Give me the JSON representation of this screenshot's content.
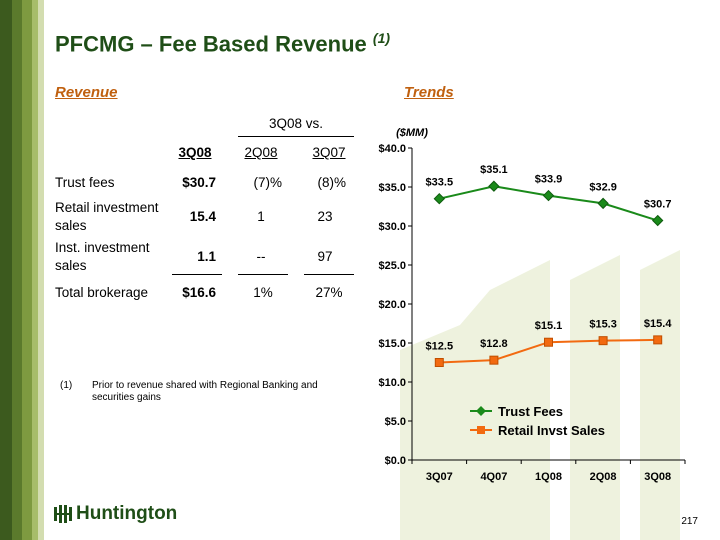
{
  "title": "PFCMG – Fee Based Revenue",
  "title_note": "(1)",
  "revenue_heading": "Revenue",
  "trends_heading": "Trends",
  "table": {
    "group_header": "3Q08 vs.",
    "col_headers": [
      "3Q08",
      "2Q08",
      "3Q07"
    ],
    "rows": [
      {
        "label_1": "Trust fees",
        "label_2": "",
        "v": "$30.7",
        "c1": "(7)%",
        "c2": "(8)%"
      },
      {
        "label_1": "Retail investment",
        "label_2": "sales",
        "v": "15.4",
        "c1": "1",
        "c2": "23"
      },
      {
        "label_1": "Inst. investment",
        "label_2": "sales",
        "v": "1.1",
        "c1": "--",
        "c2": "97"
      },
      {
        "label_1": "Total brokerage",
        "label_2": "",
        "v": "$16.6",
        "c1": "1%",
        "c2": "27%"
      }
    ]
  },
  "footnote": {
    "marker": "(1)",
    "line1": "Prior to revenue shared with Regional Banking and",
    "line2": "securities gains"
  },
  "logo_text": "Huntington",
  "page_number": "217",
  "colors": {
    "title": "#1f4e17",
    "heading": "#c0600f",
    "trust": "#1a8a1a",
    "retail": "#f26a10"
  },
  "chart_data": {
    "type": "line",
    "unit_label": "($MM)",
    "categories": [
      "3Q07",
      "4Q07",
      "1Q08",
      "2Q08",
      "3Q08"
    ],
    "ylim": [
      0,
      40
    ],
    "yticks": [
      "$0.0",
      "$5.0",
      "$10.0",
      "$15.0",
      "$20.0",
      "$25.0",
      "$30.0",
      "$35.0",
      "$40.0"
    ],
    "series": [
      {
        "name": "Trust Fees",
        "values": [
          33.5,
          35.1,
          33.9,
          32.9,
          30.7
        ],
        "labels": [
          "$33.5",
          "$35.1",
          "$33.9",
          "$32.9",
          "$30.7"
        ],
        "color": "#1a8a1a",
        "marker": "diamond"
      },
      {
        "name": "Retail Invst Sales",
        "values": [
          12.5,
          12.8,
          15.1,
          15.3,
          15.4
        ],
        "labels": [
          "$12.5",
          "$12.8",
          "$15.1",
          "$15.3",
          "$15.4"
        ],
        "color": "#f26a10",
        "marker": "square"
      }
    ],
    "grid": false,
    "legend": "bottom-right"
  }
}
